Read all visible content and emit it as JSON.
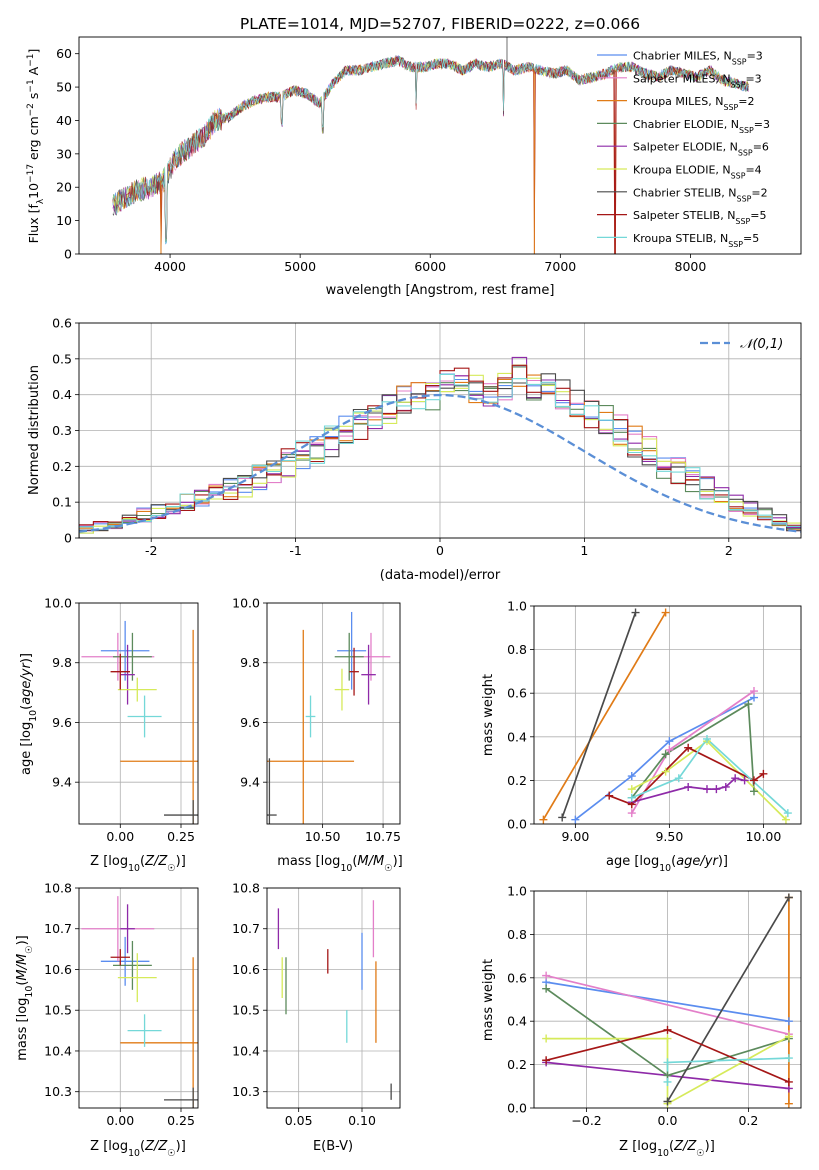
{
  "title": "PLATE=1014, MJD=52707, FIBERID=0222, z=0.066",
  "colors": {
    "Chabrier MILES": "#5b8def",
    "Salpeter MILES": "#e37fc9",
    "Kroupa MILES": "#e07b17",
    "Chabrier ELODIE": "#5c8a5c",
    "Salpeter ELODIE": "#8e2aa8",
    "Kroupa ELODIE": "#d6ea5a",
    "Chabrier STELIB": "#4a4a4a",
    "Salpeter STELIB": "#a51717",
    "Kroupa STELIB": "#74d8d8",
    "normal": "#5b8fd6"
  },
  "chart_data": [
    {
      "id": "spectrum",
      "type": "line",
      "title": "PLATE=1014, MJD=52707, FIBERID=0222, z=0.066",
      "xlabel": "wavelength [Angstrom, rest frame]",
      "ylabel_parts": [
        "Flux [f",
        "λ",
        "10",
        "−17",
        " erg cm",
        "−2",
        " s",
        "−1",
        " A",
        "−1",
        "]"
      ],
      "xlim": [
        3300,
        8850
      ],
      "ylim": [
        0,
        65
      ],
      "xticks": [
        4000,
        5000,
        6000,
        7000,
        8000
      ],
      "yticks": [
        0,
        10,
        20,
        30,
        40,
        50,
        60
      ],
      "legend_position": "top-right",
      "series": [
        {
          "name": "Chabrier MILES",
          "nssp": "3"
        },
        {
          "name": "Salpeter MILES",
          "nssp": "3"
        },
        {
          "name": "Kroupa MILES",
          "nssp": "2"
        },
        {
          "name": "Chabrier ELODIE",
          "nssp": "3"
        },
        {
          "name": "Salpeter ELODIE",
          "nssp": "6"
        },
        {
          "name": "Kroupa ELODIE",
          "nssp": "4"
        },
        {
          "name": "Chabrier STELIB",
          "nssp": "2"
        },
        {
          "name": "Salpeter STELIB",
          "nssp": "5"
        },
        {
          "name": "Kroupa STELIB",
          "nssp": "5"
        }
      ],
      "legend_suffix": "N",
      "legend_sub": "SSP",
      "spectrum_x": [
        3550,
        3650,
        3750,
        3850,
        3950,
        4050,
        4150,
        4250,
        4350,
        4450,
        4550,
        4650,
        4750,
        4850,
        4950,
        5050,
        5150,
        5250,
        5350,
        5450,
        5550,
        5650,
        5750,
        5850,
        5950,
        6050,
        6150,
        6250,
        6350,
        6450,
        6550,
        6650,
        6750,
        6850,
        6950,
        7050,
        7150,
        7250,
        7350,
        7450,
        7550,
        7650,
        7750,
        7850,
        7950,
        8050,
        8150,
        8250,
        8350,
        8450
      ],
      "spectrum_y": [
        14,
        17,
        19,
        20,
        22,
        29,
        32,
        35,
        40,
        41,
        44,
        46,
        47,
        47,
        49,
        48,
        45,
        51,
        55,
        55,
        56,
        57,
        58,
        56,
        56,
        57,
        57,
        55,
        57,
        56,
        57,
        55,
        56,
        55,
        54,
        55,
        52,
        53,
        54,
        56,
        56,
        54,
        53,
        55,
        54,
        53,
        55,
        52,
        51,
        50
      ],
      "dips": [
        [
          3930,
          0
        ],
        [
          3970,
          3
        ],
        [
          4860,
          38
        ],
        [
          5175,
          36
        ],
        [
          5890,
          43
        ],
        [
          6563,
          41
        ],
        [
          6800,
          0
        ],
        [
          7420,
          0
        ]
      ]
    },
    {
      "id": "residuals",
      "type": "histogram",
      "xlabel": "(data-model)/error",
      "ylabel": "Normed distribution",
      "xlim": [
        -2.5,
        2.5
      ],
      "ylim": [
        0,
        0.6
      ],
      "xticks": [
        -2,
        -1,
        0,
        1,
        2
      ],
      "yticks": [
        0.0,
        0.1,
        0.2,
        0.3,
        0.4,
        0.5,
        0.6
      ],
      "legend": "𝒩(0,1)",
      "legend_position": "top-right",
      "bin_edges_start": -2.5,
      "bin_width": 0.1,
      "profile": [
        0.025,
        0.035,
        0.04,
        0.05,
        0.065,
        0.075,
        0.085,
        0.1,
        0.11,
        0.13,
        0.14,
        0.15,
        0.17,
        0.19,
        0.21,
        0.23,
        0.25,
        0.27,
        0.3,
        0.32,
        0.34,
        0.36,
        0.38,
        0.39,
        0.4,
        0.45,
        0.43,
        0.42,
        0.41,
        0.42,
        0.46,
        0.43,
        0.42,
        0.4,
        0.37,
        0.35,
        0.33,
        0.3,
        0.27,
        0.24,
        0.21,
        0.19,
        0.16,
        0.14,
        0.12,
        0.1,
        0.085,
        0.07,
        0.05,
        0.03
      ]
    },
    {
      "id": "age_vs_Z",
      "type": "scatter",
      "xlabel": "Z [log10(Z/Z☉)]",
      "ylabel": "age  [log10(age/yr)]",
      "xlim": [
        -0.17,
        0.32
      ],
      "ylim": [
        9.26,
        10.0
      ],
      "xticks": [
        0.0,
        0.25
      ],
      "xtick_labels": [
        "0.00",
        "0.25"
      ],
      "yticks": [
        9.4,
        9.6,
        9.8,
        10.0
      ],
      "ytick_labels": [
        "9.4",
        "9.6",
        "9.8",
        "10.0"
      ],
      "points": [
        {
          "series": "Chabrier MILES",
          "x": 0.02,
          "y": 9.84,
          "xerr": 0.1,
          "yerr": 0.1
        },
        {
          "series": "Salpeter MILES",
          "x": -0.01,
          "y": 9.82,
          "xerr": 0.15,
          "yerr": 0.08
        },
        {
          "series": "Kroupa MILES",
          "x": 0.3,
          "y": 9.47,
          "xerr": 0.3,
          "yerr": 0.44
        },
        {
          "series": "Chabrier ELODIE",
          "x": 0.05,
          "y": 9.82,
          "xerr": 0.08,
          "yerr": 0.08
        },
        {
          "series": "Salpeter ELODIE",
          "x": 0.03,
          "y": 9.76,
          "xerr": 0.03,
          "yerr": 0.1
        },
        {
          "series": "Kroupa ELODIE",
          "x": 0.07,
          "y": 9.71,
          "xerr": 0.08,
          "yerr": 0.04
        },
        {
          "series": "Chabrier STELIB",
          "x": 0.3,
          "y": 9.29,
          "xerr": 0.12,
          "yerr": 0.05
        },
        {
          "series": "Salpeter STELIB",
          "x": 0.0,
          "y": 9.77,
          "xerr": 0.04,
          "yerr": 0.06
        },
        {
          "series": "Kroupa STELIB",
          "x": 0.1,
          "y": 9.62,
          "xerr": 0.07,
          "yerr": 0.07
        }
      ]
    },
    {
      "id": "age_vs_mass",
      "type": "scatter",
      "xlabel": "mass [log10(M/M☉)]",
      "xlim": [
        10.27,
        10.82
      ],
      "ylim": [
        9.26,
        10.0
      ],
      "xticks": [
        10.5,
        10.75
      ],
      "xtick_labels": [
        "10.50",
        "10.75"
      ],
      "yticks": [
        9.4,
        9.6,
        9.8,
        10.0
      ],
      "ytick_labels": [
        "9.4",
        "9.6",
        "9.8",
        "10.0"
      ],
      "points": [
        {
          "series": "Chabrier MILES",
          "x": 10.62,
          "y": 9.84,
          "xerr": 0.06,
          "yerr": 0.13
        },
        {
          "series": "Salpeter MILES",
          "x": 10.7,
          "y": 9.82,
          "xerr": 0.08,
          "yerr": 0.08
        },
        {
          "series": "Kroupa MILES",
          "x": 10.42,
          "y": 9.47,
          "xerr": 0.21,
          "yerr": 0.44
        },
        {
          "series": "Chabrier ELODIE",
          "x": 10.61,
          "y": 9.82,
          "xerr": 0.06,
          "yerr": 0.08
        },
        {
          "series": "Salpeter ELODIE",
          "x": 10.69,
          "y": 9.76,
          "xerr": 0.03,
          "yerr": 0.1
        },
        {
          "series": "Kroupa ELODIE",
          "x": 10.58,
          "y": 9.71,
          "xerr": 0.03,
          "yerr": 0.07
        },
        {
          "series": "Chabrier STELIB",
          "x": 10.28,
          "y": 9.29,
          "xerr": 0.03,
          "yerr": 0.19
        },
        {
          "series": "Salpeter STELIB",
          "x": 10.63,
          "y": 9.77,
          "xerr": 0.02,
          "yerr": 0.08
        },
        {
          "series": "Kroupa STELIB",
          "x": 10.45,
          "y": 9.62,
          "xerr": 0.02,
          "yerr": 0.07
        }
      ]
    },
    {
      "id": "weight_vs_age",
      "type": "line",
      "xlabel": "age  [log10(age/yr)]",
      "ylabel": "mass weight",
      "xlim": [
        8.78,
        10.2
      ],
      "ylim": [
        0.0,
        1.0
      ],
      "xticks": [
        9.0,
        9.5,
        10.0
      ],
      "xtick_labels": [
        "9.00",
        "9.50",
        "10.00"
      ],
      "yticks": [
        0.0,
        0.2,
        0.4,
        0.6,
        0.8,
        1.0
      ],
      "ytick_labels": [
        "0.0",
        "0.2",
        "0.4",
        "0.6",
        "0.8",
        "1.0"
      ],
      "series": [
        {
          "name": "Chabrier MILES",
          "x": [
            9.0,
            9.3,
            9.5,
            9.95
          ],
          "y": [
            0.02,
            0.22,
            0.38,
            0.58
          ]
        },
        {
          "name": "Salpeter MILES",
          "x": [
            9.3,
            9.5,
            9.95
          ],
          "y": [
            0.05,
            0.34,
            0.61
          ]
        },
        {
          "name": "Kroupa MILES",
          "x": [
            8.83,
            9.48
          ],
          "y": [
            0.02,
            0.97
          ]
        },
        {
          "name": "Chabrier ELODIE",
          "x": [
            9.3,
            9.48,
            9.92,
            9.95
          ],
          "y": [
            0.12,
            0.32,
            0.55,
            0.15
          ]
        },
        {
          "name": "Salpeter ELODIE",
          "x": [
            9.3,
            9.6,
            9.7,
            9.75,
            9.8,
            9.85,
            9.9
          ],
          "y": [
            0.1,
            0.17,
            0.16,
            0.16,
            0.17,
            0.21,
            0.2
          ]
        },
        {
          "name": "Kroupa ELODIE",
          "x": [
            9.3,
            9.48,
            9.7,
            10.12
          ],
          "y": [
            0.16,
            0.24,
            0.38,
            0.02
          ]
        },
        {
          "name": "Chabrier STELIB",
          "x": [
            8.93,
            9.32
          ],
          "y": [
            0.03,
            0.97
          ]
        },
        {
          "name": "Salpeter STELIB",
          "x": [
            9.18,
            9.3,
            9.6,
            9.95,
            10.0
          ],
          "y": [
            0.13,
            0.09,
            0.35,
            0.2,
            0.23
          ]
        },
        {
          "name": "Kroupa STELIB",
          "x": [
            9.3,
            9.55,
            9.7,
            10.13
          ],
          "y": [
            0.12,
            0.21,
            0.39,
            0.05
          ]
        }
      ]
    },
    {
      "id": "mass_vs_Z",
      "type": "scatter",
      "xlabel": "Z [log10(Z/Z☉)]",
      "ylabel": "mass [log10(M/M☉)]",
      "xlim": [
        -0.17,
        0.32
      ],
      "ylim": [
        10.26,
        10.8
      ],
      "xticks": [
        0.0,
        0.25
      ],
      "xtick_labels": [
        "0.00",
        "0.25"
      ],
      "yticks": [
        10.3,
        10.4,
        10.5,
        10.6,
        10.7,
        10.8
      ],
      "ytick_labels": [
        "10.3",
        "10.4",
        "10.5",
        "10.6",
        "10.7",
        "10.8"
      ],
      "points": [
        {
          "series": "Chabrier MILES",
          "x": 0.02,
          "y": 10.62,
          "xerr": 0.1,
          "yerr": 0.06
        },
        {
          "series": "Salpeter MILES",
          "x": -0.01,
          "y": 10.7,
          "xerr": 0.15,
          "yerr": 0.08
        },
        {
          "series": "Kroupa MILES",
          "x": 0.3,
          "y": 10.42,
          "xerr": 0.3,
          "yerr": 0.21
        },
        {
          "series": "Chabrier ELODIE",
          "x": 0.05,
          "y": 10.61,
          "xerr": 0.08,
          "yerr": 0.06
        },
        {
          "series": "Salpeter ELODIE",
          "x": 0.03,
          "y": 10.7,
          "xerr": 0.03,
          "yerr": 0.06
        },
        {
          "series": "Kroupa ELODIE",
          "x": 0.07,
          "y": 10.58,
          "xerr": 0.08,
          "yerr": 0.06
        },
        {
          "series": "Chabrier STELIB",
          "x": 0.3,
          "y": 10.28,
          "xerr": 0.12,
          "yerr": 0.03
        },
        {
          "series": "Salpeter STELIB",
          "x": 0.0,
          "y": 10.63,
          "xerr": 0.04,
          "yerr": 0.02
        },
        {
          "series": "Kroupa STELIB",
          "x": 0.1,
          "y": 10.45,
          "xerr": 0.07,
          "yerr": 0.04
        }
      ]
    },
    {
      "id": "mass_vs_ebv",
      "type": "scatter",
      "xlabel": "E(B-V)",
      "xlim": [
        0.025,
        0.13
      ],
      "ylim": [
        10.26,
        10.8
      ],
      "xticks": [
        0.05,
        0.1
      ],
      "xtick_labels": [
        "0.05",
        "0.10"
      ],
      "yticks": [
        10.3,
        10.4,
        10.5,
        10.6,
        10.7,
        10.8
      ],
      "ytick_labels": [
        "10.3",
        "10.4",
        "10.5",
        "10.6",
        "10.7",
        "10.8"
      ],
      "points": [
        {
          "series": "Chabrier MILES",
          "x": 0.1,
          "y": 10.62,
          "xerr": 0,
          "yerr": 0.07
        },
        {
          "series": "Salpeter MILES",
          "x": 0.109,
          "y": 10.7,
          "xerr": 0,
          "yerr": 0.07
        },
        {
          "series": "Kroupa MILES",
          "x": 0.111,
          "y": 10.52,
          "xerr": 0,
          "yerr": 0.1
        },
        {
          "series": "Chabrier ELODIE",
          "x": 0.04,
          "y": 10.56,
          "xerr": 0,
          "yerr": 0.07
        },
        {
          "series": "Salpeter ELODIE",
          "x": 0.034,
          "y": 10.7,
          "xerr": 0,
          "yerr": 0.05
        },
        {
          "series": "Kroupa ELODIE",
          "x": 0.037,
          "y": 10.58,
          "xerr": 0,
          "yerr": 0.05
        },
        {
          "series": "Chabrier STELIB",
          "x": 0.123,
          "y": 10.3,
          "xerr": 0,
          "yerr": 0.02
        },
        {
          "series": "Salpeter STELIB",
          "x": 0.073,
          "y": 10.62,
          "xerr": 0,
          "yerr": 0.03
        },
        {
          "series": "Kroupa STELIB",
          "x": 0.088,
          "y": 10.46,
          "xerr": 0,
          "yerr": 0.04
        }
      ]
    },
    {
      "id": "weight_vs_Z",
      "type": "line",
      "xlabel": "Z [log10(Z/Z☉)]",
      "ylabel": "mass weight",
      "xlim": [
        -0.33,
        0.33
      ],
      "ylim": [
        0.0,
        1.0
      ],
      "xticks": [
        -0.2,
        0.0,
        0.2
      ],
      "xtick_labels": [
        "−0.2",
        "0.0",
        "0.2"
      ],
      "yticks": [
        0.0,
        0.2,
        0.4,
        0.6,
        0.8,
        1.0
      ],
      "ytick_labels": [
        "0.0",
        "0.2",
        "0.4",
        "0.6",
        "0.8",
        "1.0"
      ],
      "series": [
        {
          "name": "Chabrier MILES",
          "x": [
            -0.3,
            0.3
          ],
          "y": [
            0.58,
            0.4
          ]
        },
        {
          "name": "Salpeter MILES",
          "x": [
            -0.3,
            0.3
          ],
          "y": [
            0.61,
            0.34
          ]
        },
        {
          "name": "Kroupa MILES",
          "x": [
            0.3,
            0.3
          ],
          "y": [
            0.02,
            0.97
          ]
        },
        {
          "name": "Chabrier ELODIE",
          "x": [
            -0.3,
            0.0,
            0.3
          ],
          "y": [
            0.55,
            0.15,
            0.32
          ]
        },
        {
          "name": "Salpeter ELODIE",
          "x": [
            -0.3,
            0.3
          ],
          "y": [
            0.21,
            0.09
          ]
        },
        {
          "name": "Kroupa ELODIE",
          "x": [
            -0.3,
            0.0,
            0.0,
            0.3
          ],
          "y": [
            0.32,
            0.32,
            0.02,
            0.33
          ]
        },
        {
          "name": "Chabrier STELIB",
          "x": [
            0.0,
            0.3
          ],
          "y": [
            0.03,
            0.97
          ]
        },
        {
          "name": "Salpeter STELIB",
          "x": [
            -0.3,
            0.0,
            0.3
          ],
          "y": [
            0.22,
            0.36,
            0.12
          ]
        },
        {
          "name": "Kroupa STELIB",
          "x": [
            0.0,
            0.0,
            0.3
          ],
          "y": [
            0.12,
            0.21,
            0.23
          ]
        }
      ]
    }
  ]
}
